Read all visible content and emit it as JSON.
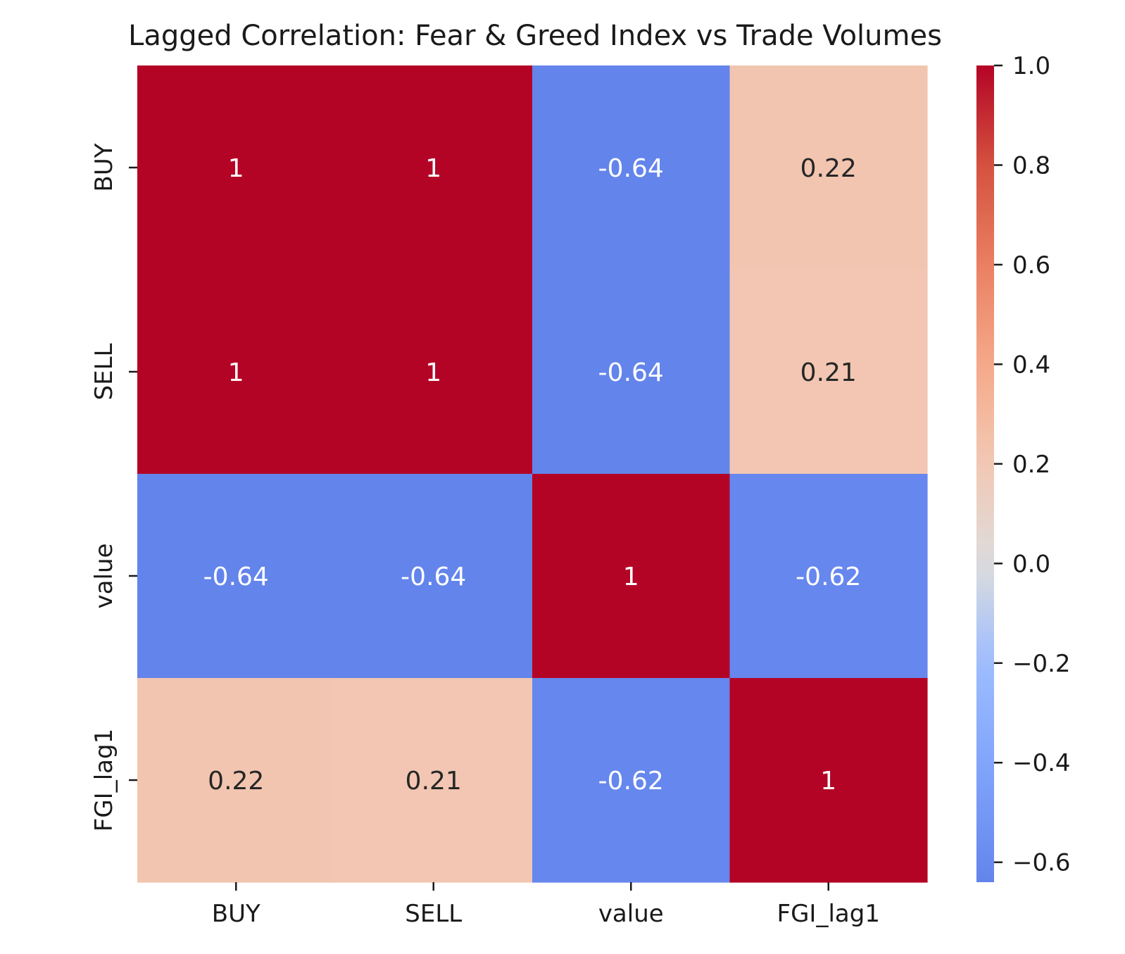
{
  "chart_data": {
    "type": "heatmap",
    "title": "Lagged Correlation: Fear & Greed Index vs Trade Volumes",
    "xlabel": "",
    "ylabel": "",
    "x_categories": [
      "BUY",
      "SELL",
      "value",
      "FGI_lag1"
    ],
    "y_categories": [
      "BUY",
      "SELL",
      "value",
      "FGI_lag1"
    ],
    "values": [
      [
        1.0,
        1.0,
        -0.64,
        0.22
      ],
      [
        1.0,
        1.0,
        -0.64,
        0.21
      ],
      [
        -0.64,
        -0.64,
        1.0,
        -0.62
      ],
      [
        0.22,
        0.21,
        -0.62,
        1.0
      ]
    ],
    "cell_labels": [
      [
        "1",
        "1",
        "-0.64",
        "0.22"
      ],
      [
        "1",
        "1",
        "-0.64",
        "0.21"
      ],
      [
        "-0.64",
        "-0.64",
        "1",
        "-0.62"
      ],
      [
        "0.22",
        "0.21",
        "-0.62",
        "1"
      ]
    ],
    "colormap": "coolwarm",
    "colorbar": {
      "range": [
        -0.64,
        1.0
      ],
      "ticks": [
        1.0,
        0.8,
        0.6,
        0.4,
        0.2,
        0.0,
        -0.2,
        -0.4,
        -0.6
      ],
      "tick_labels": [
        "1.0",
        "0.8",
        "0.6",
        "0.4",
        "0.2",
        "0.0",
        "−0.2",
        "−0.4",
        "−0.6"
      ]
    },
    "colors": {
      "max": "#b40426",
      "min": "#7597f6",
      "text_light": "#ffffff",
      "text_dark": "#262626"
    },
    "grid": false
  }
}
